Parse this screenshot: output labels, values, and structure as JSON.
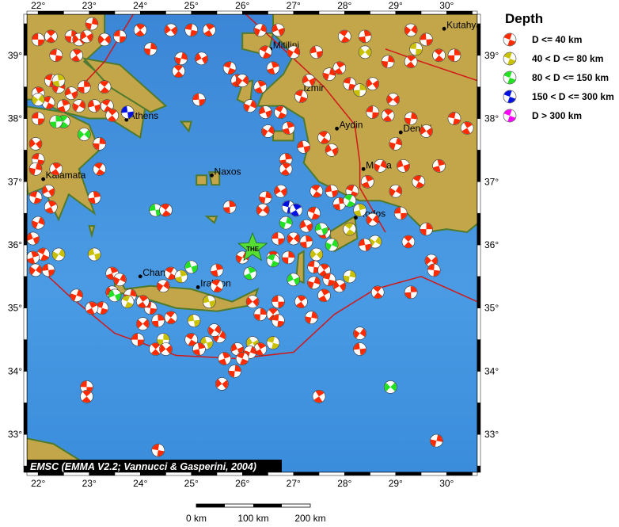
{
  "map": {
    "lon_range": [
      21.78,
      30.6
    ],
    "lat_range": [
      32.4,
      39.65
    ],
    "lon_ticks": [
      22,
      23,
      24,
      25,
      26,
      27,
      28,
      29,
      30
    ],
    "lat_ticks": [
      33,
      34,
      35,
      36,
      37,
      38,
      39
    ],
    "degree_symbol": "°",
    "sea_color": "#3d8fdc",
    "land_color": "#c4a64a",
    "plate_boundary_color": "#d01818"
  },
  "legend": {
    "title": "Depth",
    "items": [
      {
        "label": "D <= 40 km",
        "color": "#ff2a00"
      },
      {
        "label": "40 < D <= 80 km",
        "color": "#c8c000"
      },
      {
        "label": "80 < D <= 150 km",
        "color": "#22e022"
      },
      {
        "label": "150 < D <= 300 km",
        "color": "#0010e0"
      },
      {
        "label": "D > 300 km",
        "color": "#ff00ff"
      }
    ]
  },
  "cities": [
    {
      "name": "Athens",
      "lon": 23.73,
      "lat": 37.98
    },
    {
      "name": "Kalamata",
      "lon": 22.1,
      "lat": 37.04
    },
    {
      "name": "Naxos",
      "lon": 25.4,
      "lat": 37.1
    },
    {
      "name": "Chania",
      "lon": 24.0,
      "lat": 35.5
    },
    {
      "name": "Iraklion",
      "lon": 25.13,
      "lat": 35.33
    },
    {
      "name": "Mitilini",
      "lon": 26.55,
      "lat": 39.1
    },
    {
      "name": "Izmir",
      "lon": 27.15,
      "lat": 38.42
    },
    {
      "name": "Aydin",
      "lon": 27.85,
      "lat": 37.84
    },
    {
      "name": "Denizli",
      "lon": 29.1,
      "lat": 37.78
    },
    {
      "name": "Mugla",
      "lon": 28.37,
      "lat": 37.2
    },
    {
      "name": "Rodos",
      "lon": 28.22,
      "lat": 36.43
    },
    {
      "name": "Kutahya",
      "lon": 29.95,
      "lat": 39.42
    }
  ],
  "star": {
    "label": "THE",
    "lon": 26.2,
    "lat": 35.95,
    "color": "#55dd33"
  },
  "credit": "EMSC (EMMA V2.2; Vannucci & Gasperini, 2004)",
  "scale_bar": {
    "labels": [
      "0 km",
      "100 km",
      "200 km"
    ]
  },
  "events": [
    [
      22.0,
      39.25,
      1
    ],
    [
      22.25,
      39.3,
      1
    ],
    [
      22.65,
      39.3,
      1
    ],
    [
      22.8,
      39.25,
      1
    ],
    [
      22.35,
      39.0,
      1
    ],
    [
      22.75,
      39.0,
      1
    ],
    [
      23.05,
      39.5,
      1
    ],
    [
      22.95,
      39.3,
      1
    ],
    [
      22.25,
      38.6,
      1
    ],
    [
      22.0,
      38.4,
      1
    ],
    [
      22.4,
      38.5,
      1
    ],
    [
      22.65,
      38.4,
      1
    ],
    [
      22.2,
      38.25,
      1
    ],
    [
      22.5,
      38.2,
      1
    ],
    [
      22.8,
      38.2,
      1
    ],
    [
      23.1,
      38.2,
      1
    ],
    [
      23.35,
      38.2,
      1
    ],
    [
      22.4,
      38.6,
      2
    ],
    [
      22.0,
      38.3,
      2
    ],
    [
      23.75,
      38.1,
      4
    ],
    [
      22.5,
      37.95,
      3
    ],
    [
      22.35,
      37.95,
      3
    ],
    [
      22.9,
      37.75,
      3
    ],
    [
      22.0,
      38.0,
      1
    ],
    [
      23.45,
      38.05,
      1
    ],
    [
      23.2,
      37.6,
      1
    ],
    [
      21.95,
      37.6,
      1
    ],
    [
      22.0,
      37.35,
      1
    ],
    [
      22.35,
      37.2,
      1
    ],
    [
      21.95,
      37.2,
      1
    ],
    [
      22.2,
      36.85,
      1
    ],
    [
      21.95,
      36.75,
      1
    ],
    [
      22.25,
      36.6,
      1
    ],
    [
      22.0,
      36.35,
      1
    ],
    [
      21.9,
      36.1,
      1
    ],
    [
      22.1,
      35.85,
      1
    ],
    [
      21.9,
      35.8,
      1
    ],
    [
      22.4,
      35.85,
      2
    ],
    [
      23.1,
      35.85,
      2
    ],
    [
      23.2,
      37.2,
      1
    ],
    [
      23.1,
      36.75,
      1
    ],
    [
      21.95,
      35.6,
      1
    ],
    [
      22.2,
      35.6,
      1
    ],
    [
      23.3,
      38.5,
      1
    ],
    [
      22.9,
      38.5,
      1
    ],
    [
      23.3,
      39.25,
      1
    ],
    [
      23.6,
      39.3,
      1
    ],
    [
      24.0,
      39.4,
      1
    ],
    [
      24.2,
      39.1,
      1
    ],
    [
      24.6,
      39.4,
      1
    ],
    [
      25.0,
      39.4,
      1
    ],
    [
      25.35,
      39.4,
      1
    ],
    [
      24.8,
      38.95,
      1
    ],
    [
      25.2,
      38.95,
      1
    ],
    [
      25.75,
      38.8,
      1
    ],
    [
      25.9,
      38.6,
      1
    ],
    [
      26.35,
      39.4,
      1
    ],
    [
      26.7,
      39.4,
      1
    ],
    [
      26.45,
      39.05,
      1
    ],
    [
      26.6,
      38.8,
      1
    ],
    [
      27.0,
      39.05,
      1
    ],
    [
      27.45,
      39.05,
      1
    ],
    [
      28.0,
      39.3,
      1
    ],
    [
      28.4,
      39.3,
      1
    ],
    [
      29.3,
      39.4,
      1
    ],
    [
      29.6,
      39.25,
      1
    ],
    [
      29.85,
      39.0,
      1
    ],
    [
      30.15,
      39.0,
      1
    ],
    [
      28.4,
      39.05,
      2
    ],
    [
      29.4,
      39.1,
      2
    ],
    [
      29.3,
      38.9,
      1
    ],
    [
      28.85,
      38.9,
      1
    ],
    [
      28.55,
      38.55,
      1
    ],
    [
      28.1,
      38.55,
      1
    ],
    [
      27.9,
      38.8,
      1
    ],
    [
      27.7,
      38.7,
      1
    ],
    [
      27.3,
      38.6,
      1
    ],
    [
      27.15,
      38.35,
      1
    ],
    [
      26.35,
      38.5,
      1
    ],
    [
      26.15,
      38.2,
      1
    ],
    [
      26.45,
      38.1,
      1
    ],
    [
      26.75,
      38.1,
      1
    ],
    [
      26.9,
      37.85,
      1
    ],
    [
      26.5,
      37.8,
      1
    ],
    [
      27.2,
      37.55,
      1
    ],
    [
      27.6,
      37.7,
      1
    ],
    [
      26.85,
      37.35,
      1
    ],
    [
      26.0,
      38.6,
      1
    ],
    [
      25.15,
      38.3,
      1
    ],
    [
      24.75,
      38.75,
      1
    ],
    [
      28.3,
      38.45,
      2
    ],
    [
      28.95,
      38.3,
      1
    ],
    [
      28.55,
      38.1,
      1
    ],
    [
      28.85,
      38.05,
      1
    ],
    [
      29.3,
      38.0,
      1
    ],
    [
      29.6,
      37.8,
      1
    ],
    [
      30.15,
      38.0,
      1
    ],
    [
      30.4,
      37.85,
      1
    ],
    [
      29.0,
      37.6,
      1
    ],
    [
      27.75,
      37.5,
      1
    ],
    [
      28.15,
      36.85,
      1
    ],
    [
      28.45,
      37.0,
      1
    ],
    [
      28.7,
      37.25,
      1
    ],
    [
      29.15,
      37.25,
      1
    ],
    [
      29.45,
      37.0,
      1
    ],
    [
      29.85,
      37.25,
      1
    ],
    [
      29.0,
      36.85,
      1
    ],
    [
      27.75,
      36.85,
      1
    ],
    [
      27.45,
      36.85,
      1
    ],
    [
      27.9,
      36.65,
      1
    ],
    [
      28.55,
      36.4,
      1
    ],
    [
      29.1,
      36.5,
      1
    ],
    [
      29.25,
      36.05,
      1
    ],
    [
      29.6,
      36.25,
      1
    ],
    [
      29.7,
      35.75,
      1
    ],
    [
      29.75,
      35.6,
      1
    ],
    [
      26.85,
      37.2,
      1
    ],
    [
      26.45,
      36.75,
      1
    ],
    [
      26.75,
      36.85,
      1
    ],
    [
      26.9,
      36.6,
      4
    ],
    [
      27.05,
      36.55,
      4
    ],
    [
      26.85,
      36.35,
      3
    ],
    [
      27.25,
      36.3,
      1
    ],
    [
      27.4,
      36.5,
      1
    ],
    [
      27.6,
      36.2,
      1
    ],
    [
      27.75,
      36.0,
      3
    ],
    [
      27.55,
      36.25,
      3
    ],
    [
      28.1,
      36.7,
      3
    ],
    [
      28.3,
      36.55,
      2
    ],
    [
      28.6,
      36.05,
      2
    ],
    [
      28.4,
      36.0,
      1
    ],
    [
      28.1,
      36.25,
      2
    ],
    [
      27.25,
      36.05,
      1
    ],
    [
      27.0,
      36.1,
      1
    ],
    [
      26.7,
      36.1,
      1
    ],
    [
      26.6,
      35.8,
      1
    ],
    [
      26.9,
      35.8,
      1
    ],
    [
      27.45,
      35.85,
      2
    ],
    [
      27.4,
      35.65,
      1
    ],
    [
      27.6,
      35.6,
      1
    ],
    [
      28.1,
      35.5,
      2
    ],
    [
      27.9,
      35.35,
      1
    ],
    [
      27.7,
      35.45,
      1
    ],
    [
      27.6,
      35.2,
      1
    ],
    [
      27.4,
      35.4,
      1
    ],
    [
      27.0,
      35.45,
      3
    ],
    [
      26.6,
      35.75,
      3
    ],
    [
      26.15,
      35.55,
      3
    ],
    [
      26.0,
      35.8,
      1
    ],
    [
      25.0,
      35.65,
      3
    ],
    [
      24.6,
      35.55,
      1
    ],
    [
      24.8,
      35.5,
      2
    ],
    [
      24.45,
      35.35,
      1
    ],
    [
      24.3,
      36.55,
      3
    ],
    [
      24.5,
      36.55,
      1
    ],
    [
      25.75,
      36.6,
      1
    ],
    [
      26.4,
      36.55,
      1
    ],
    [
      26.7,
      35.1,
      1
    ],
    [
      26.6,
      34.9,
      1
    ],
    [
      26.35,
      34.9,
      1
    ],
    [
      26.2,
      35.1,
      1
    ],
    [
      26.7,
      34.8,
      1
    ],
    [
      27.15,
      35.1,
      1
    ],
    [
      27.35,
      34.85,
      1
    ],
    [
      26.2,
      34.45,
      2
    ],
    [
      26.6,
      34.45,
      2
    ],
    [
      26.35,
      34.35,
      1
    ],
    [
      26.15,
      34.3,
      1
    ],
    [
      25.9,
      34.35,
      1
    ],
    [
      26.0,
      34.2,
      1
    ],
    [
      25.65,
      34.2,
      1
    ],
    [
      25.55,
      34.55,
      1
    ],
    [
      25.3,
      34.45,
      2
    ],
    [
      25.0,
      34.5,
      1
    ],
    [
      25.15,
      34.35,
      1
    ],
    [
      25.45,
      34.65,
      1
    ],
    [
      25.05,
      34.8,
      2
    ],
    [
      24.6,
      34.85,
      1
    ],
    [
      24.35,
      34.8,
      1
    ],
    [
      24.05,
      34.75,
      1
    ],
    [
      23.95,
      34.5,
      1
    ],
    [
      24.3,
      34.35,
      1
    ],
    [
      24.45,
      34.5,
      2
    ],
    [
      24.5,
      34.35,
      1
    ],
    [
      24.2,
      35.0,
      1
    ],
    [
      24.05,
      35.1,
      1
    ],
    [
      23.8,
      35.2,
      1
    ],
    [
      23.45,
      35.25,
      1
    ],
    [
      23.25,
      35.0,
      1
    ],
    [
      23.05,
      35.0,
      1
    ],
    [
      22.75,
      35.2,
      1
    ],
    [
      23.5,
      35.2,
      3
    ],
    [
      23.75,
      35.1,
      2
    ],
    [
      23.45,
      35.55,
      1
    ],
    [
      23.6,
      35.45,
      1
    ],
    [
      25.35,
      35.1,
      2
    ],
    [
      25.5,
      35.35,
      1
    ],
    [
      25.5,
      35.6,
      1
    ],
    [
      28.3,
      34.6,
      1
    ],
    [
      28.3,
      34.35,
      1
    ],
    [
      28.65,
      35.25,
      1
    ],
    [
      29.3,
      35.25,
      1
    ],
    [
      28.9,
      33.75,
      3
    ],
    [
      22.95,
      33.75,
      1
    ],
    [
      22.95,
      33.6,
      1
    ],
    [
      25.85,
      34.0,
      1
    ],
    [
      25.6,
      33.8,
      1
    ],
    [
      24.35,
      32.75,
      1
    ],
    [
      27.5,
      33.6,
      1
    ],
    [
      29.8,
      32.9,
      1
    ]
  ]
}
